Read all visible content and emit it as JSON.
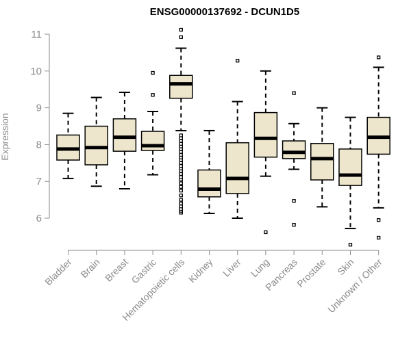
{
  "chart_data": {
    "type": "box",
    "title": "ENSG00000137692 - DCUN1D5",
    "xlabel": "",
    "ylabel": "Expression",
    "ylim": [
      5.2,
      11.2
    ],
    "yticks": [
      6,
      7,
      8,
      9,
      10,
      11
    ],
    "box_fill": "#ede6cc",
    "categories": [
      "Bladder",
      "Brain",
      "Breast",
      "Gastric",
      "Hematopoietic cells",
      "Kidney",
      "Liver",
      "Lung",
      "Pancreas",
      "Prostate",
      "Skin",
      "Unknown / Other"
    ],
    "boxes": [
      {
        "whisker_low": 7.08,
        "q1": 7.58,
        "median": 7.88,
        "q3": 8.26,
        "whisker_high": 8.85,
        "outliers": []
      },
      {
        "whisker_low": 6.87,
        "q1": 7.45,
        "median": 7.92,
        "q3": 8.5,
        "whisker_high": 9.28,
        "outliers": []
      },
      {
        "whisker_low": 6.8,
        "q1": 7.82,
        "median": 8.2,
        "q3": 8.7,
        "whisker_high": 9.42,
        "outliers": []
      },
      {
        "whisker_low": 7.18,
        "q1": 7.84,
        "median": 7.97,
        "q3": 8.36,
        "whisker_high": 8.9,
        "outliers": [
          9.35,
          9.95
        ]
      },
      {
        "whisker_low": 8.38,
        "q1": 9.26,
        "median": 9.65,
        "q3": 9.88,
        "whisker_high": 10.62,
        "outliers": [
          6.15,
          6.2,
          6.25,
          6.32,
          6.4,
          6.5,
          6.62,
          6.75,
          6.85,
          6.95,
          7.05,
          7.12,
          7.2,
          7.28,
          7.35,
          7.42,
          7.5,
          7.58,
          7.65,
          7.72,
          7.8,
          7.88,
          7.95,
          8.02,
          8.1,
          8.18,
          8.25,
          10.92,
          11.12
        ]
      },
      {
        "whisker_low": 6.13,
        "q1": 6.58,
        "median": 6.79,
        "q3": 7.31,
        "whisker_high": 8.38,
        "outliers": []
      },
      {
        "whisker_low": 6.0,
        "q1": 6.67,
        "median": 7.08,
        "q3": 8.05,
        "whisker_high": 9.17,
        "outliers": [
          10.28
        ]
      },
      {
        "whisker_low": 7.14,
        "q1": 7.66,
        "median": 8.17,
        "q3": 8.87,
        "whisker_high": 10.0,
        "outliers": [
          5.62
        ]
      },
      {
        "whisker_low": 7.33,
        "q1": 7.62,
        "median": 7.79,
        "q3": 8.1,
        "whisker_high": 8.57,
        "outliers": [
          5.82,
          6.47,
          9.4
        ]
      },
      {
        "whisker_low": 6.31,
        "q1": 7.04,
        "median": 7.62,
        "q3": 8.03,
        "whisker_high": 9.0,
        "outliers": []
      },
      {
        "whisker_low": 5.72,
        "q1": 6.89,
        "median": 7.17,
        "q3": 7.88,
        "whisker_high": 8.74,
        "outliers": [
          5.28
        ]
      },
      {
        "whisker_low": 6.28,
        "q1": 7.74,
        "median": 8.2,
        "q3": 8.74,
        "whisker_high": 10.1,
        "outliers": [
          5.47,
          5.95,
          10.37
        ]
      }
    ]
  }
}
